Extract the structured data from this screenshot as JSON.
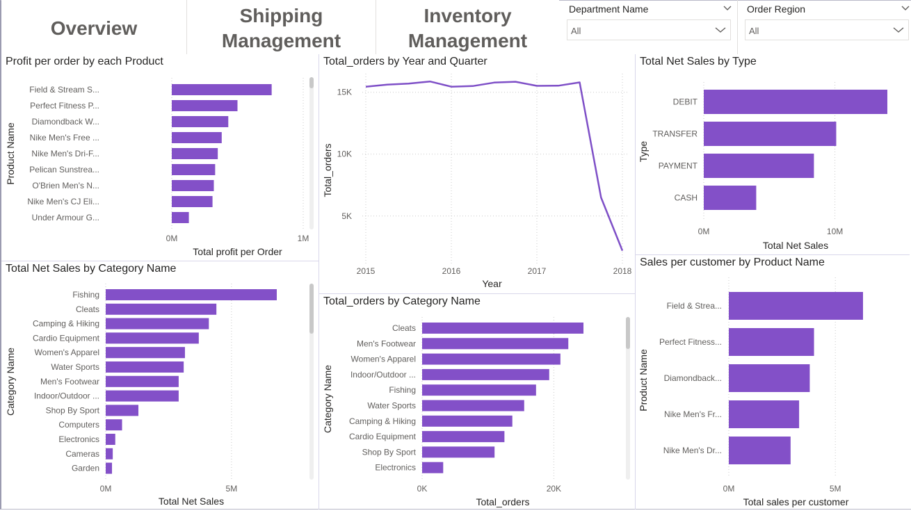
{
  "nav": {
    "overview": "Overview",
    "shipping": [
      "Shipping",
      "Management"
    ],
    "inventory": [
      "Inventory",
      "Management"
    ]
  },
  "slicers": [
    {
      "title": "Department Name",
      "value": "All"
    },
    {
      "title": "Order Region",
      "value": "All"
    }
  ],
  "colors": {
    "bar": "#8350c8",
    "line": "#7e4fc7",
    "grid": "#c8c8c8",
    "axis_text": "#605e5c"
  },
  "chart_data": [
    {
      "type": "bar",
      "orientation": "horizontal",
      "title": "Profit per order by each Product",
      "xlabel": "Total profit per Order",
      "ylabel": "Product Name",
      "categories": [
        "Field & Stream S...",
        "Perfect Fitness P...",
        "Diamondback W...",
        "Nike Men's Free ...",
        "Nike Men's Dri-F...",
        "Pelican Sunstrea...",
        "O'Brien Men's N...",
        "Nike Men's CJ Eli...",
        "Under Armour G..."
      ],
      "values": [
        760000,
        500000,
        430000,
        380000,
        350000,
        330000,
        320000,
        310000,
        130000
      ],
      "ticks": [
        {
          "v": 0,
          "label": "0M"
        },
        {
          "v": 1000000,
          "label": "1M"
        }
      ],
      "xlim": [
        0,
        1000000
      ],
      "grid": true
    },
    {
      "type": "line",
      "title": "Total_orders by Year and Quarter",
      "xlabel": "Year",
      "ylabel": "Total_orders",
      "x": [
        2015.0,
        2015.25,
        2015.5,
        2015.75,
        2016.0,
        2016.25,
        2016.5,
        2016.75,
        2017.0,
        2017.25,
        2017.5,
        2017.75,
        2018.0
      ],
      "values": [
        15450,
        15620,
        15700,
        15870,
        15450,
        15500,
        15780,
        15850,
        15520,
        15530,
        15800,
        6500,
        2200
      ],
      "xticks": [
        {
          "v": 2015,
          "label": "2015"
        },
        {
          "v": 2016,
          "label": "2016"
        },
        {
          "v": 2017,
          "label": "2017"
        },
        {
          "v": 2018,
          "label": "2018"
        }
      ],
      "yticks": [
        {
          "v": 5000,
          "label": "5K"
        },
        {
          "v": 10000,
          "label": "10K"
        },
        {
          "v": 15000,
          "label": "15K"
        }
      ],
      "xlim": [
        2015,
        2018
      ],
      "ylim": [
        1000,
        16500
      ],
      "grid": true
    },
    {
      "type": "bar",
      "orientation": "horizontal",
      "title": "Total Net Sales by Type",
      "xlabel": "Total Net Sales",
      "ylabel": "Type",
      "categories": [
        "DEBIT",
        "TRANSFER",
        "PAYMENT",
        "CASH"
      ],
      "values": [
        14000000,
        10100000,
        8400000,
        4000000
      ],
      "ticks": [
        {
          "v": 0,
          "label": "0M"
        },
        {
          "v": 10000000,
          "label": "10M"
        }
      ],
      "xlim": [
        0,
        14000000
      ],
      "grid": true
    },
    {
      "type": "bar",
      "orientation": "horizontal",
      "title": "Total Net Sales by Category Name",
      "xlabel": "Total Net Sales",
      "ylabel": "Category Name",
      "categories": [
        "Fishing",
        "Cleats",
        "Camping & Hiking",
        "Cardio Equipment",
        "Women's Apparel",
        "Water Sports",
        "Men's Footwear",
        "Indoor/Outdoor ...",
        "Shop By Sport",
        "Computers",
        "Electronics",
        "Cameras",
        "Garden"
      ],
      "values": [
        6800000,
        4400000,
        4100000,
        3700000,
        3150000,
        3100000,
        2900000,
        2900000,
        1300000,
        650000,
        380000,
        280000,
        250000
      ],
      "ticks": [
        {
          "v": 0,
          "label": "0M"
        },
        {
          "v": 5000000,
          "label": "5M"
        }
      ],
      "xlim": [
        0,
        6800000
      ],
      "grid": true
    },
    {
      "type": "bar",
      "orientation": "horizontal",
      "title": "Total_orders by Category Name",
      "xlabel": "Total_orders",
      "ylabel": "Category Name",
      "categories": [
        "Cleats",
        "Men's Footwear",
        "Women's Apparel",
        "Indoor/Outdoor ...",
        "Fishing",
        "Water Sports",
        "Camping & Hiking",
        "Cardio Equipment",
        "Shop By Sport",
        "Electronics"
      ],
      "values": [
        24500,
        22200,
        21000,
        19300,
        17300,
        15500,
        13700,
        12500,
        11000,
        3200
      ],
      "ticks": [
        {
          "v": 0,
          "label": "0K"
        },
        {
          "v": 20000,
          "label": "20K"
        }
      ],
      "xlim": [
        0,
        24500
      ],
      "grid": true
    },
    {
      "type": "bar",
      "orientation": "horizontal",
      "title": "Sales per customer by Product Name",
      "xlabel": "Total sales per customer",
      "ylabel": "Product Name",
      "categories": [
        "Field & Strea...",
        "Perfect Fitness...",
        "Diamondback...",
        "Nike Men's Fr...",
        "Nike Men's Dr..."
      ],
      "values": [
        6300000,
        4000000,
        3800000,
        3300000,
        2900000
      ],
      "ticks": [
        {
          "v": 0,
          "label": "0M"
        },
        {
          "v": 5000000,
          "label": "5M"
        }
      ],
      "xlim": [
        0,
        6300000
      ],
      "grid": true
    }
  ]
}
